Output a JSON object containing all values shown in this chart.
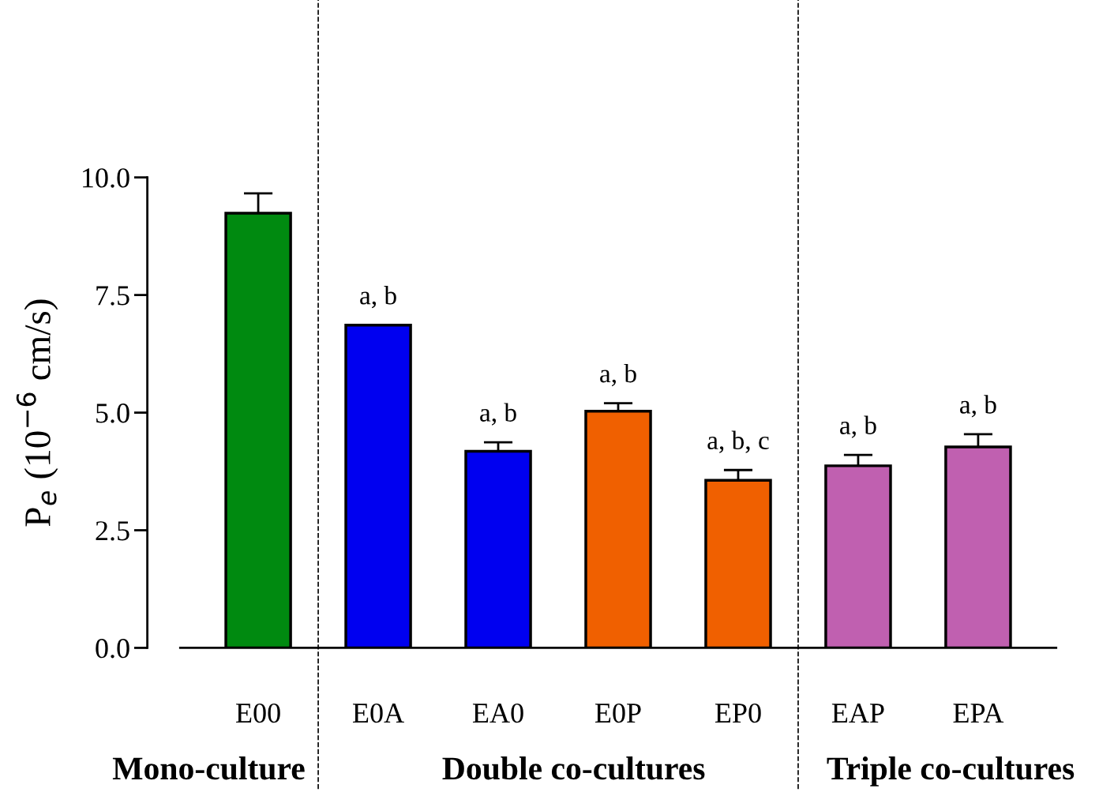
{
  "chart_data": {
    "type": "bar",
    "ylabel": "P$_{e}$ (10$^{−6}$ cm/s)",
    "categories": [
      "E00",
      "E0A",
      "EA0",
      "E0P",
      "EP0",
      "EAP",
      "EPA"
    ],
    "values": [
      9.24,
      6.86,
      4.18,
      5.03,
      3.56,
      3.87,
      4.27
    ],
    "errors": [
      0.42,
      null,
      0.19,
      0.17,
      0.22,
      0.23,
      0.27
    ],
    "value_labels": [
      null,
      "a, b",
      "a, b",
      "a, b",
      "a, b, c",
      "a, b",
      "a, b"
    ],
    "colors": [
      "#008a10",
      "#0000f0",
      "#0000f0",
      "#f06000",
      "#f06000",
      "#c060b0",
      "#c060b0"
    ],
    "ylim": [
      0,
      10
    ],
    "yticks": [
      {
        "value": 0,
        "label": "0.0"
      },
      {
        "value": 2.5,
        "label": "2.5"
      },
      {
        "value": 5,
        "label": "5.0"
      },
      {
        "value": 7.5,
        "label": "7.5"
      },
      {
        "value": 10,
        "label": "10.0"
      }
    ],
    "grid": false,
    "annotations": [
      "Mono-culture",
      "Double co-cultures",
      "Triple co-cultures"
    ]
  }
}
